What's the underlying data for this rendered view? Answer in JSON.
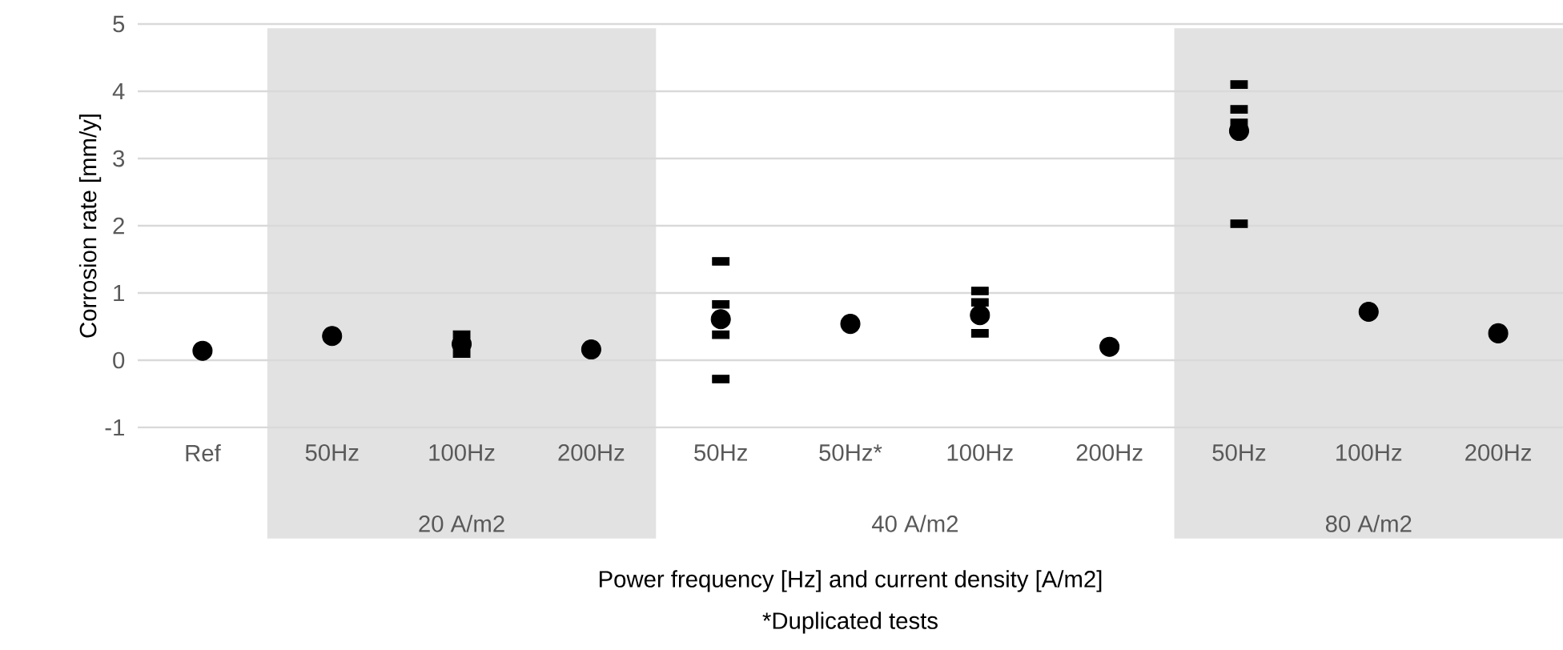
{
  "chart_data": {
    "type": "scatter",
    "xlabel": "Power frequency [Hz] and current density [A/m2]",
    "ylabel": "Corrosion rate [mm/y]",
    "annotations": [
      "20 A/m2",
      "40 A/m2",
      "80 A/m2",
      "*Duplicated tests"
    ],
    "categories": [
      "Ref",
      "50Hz",
      "100Hz",
      "200Hz",
      "50Hz",
      "50Hz*",
      "100Hz",
      "200Hz",
      "50Hz",
      "100Hz",
      "200Hz"
    ],
    "series": [
      {
        "color": "#000000",
        "marker": "circle",
        "values": [
          0.14,
          0.36,
          0.24,
          0.16,
          0.61,
          0.54,
          0.67,
          0.2,
          3.41,
          0.72,
          0.4
        ]
      },
      {
        "color": "#000000",
        "values": [
          null,
          null,
          0.38,
          null,
          1.47,
          null,
          1.03,
          null,
          4.1,
          null,
          null
        ]
      },
      {
        "color": "#000000",
        "values": [
          null,
          null,
          0.1,
          null,
          0.83,
          null,
          0.86,
          null,
          3.73,
          null,
          null
        ]
      },
      {
        "color": "#000000",
        "values": [
          null,
          null,
          null,
          null,
          0.38,
          null,
          0.4,
          null,
          3.53,
          null,
          null
        ]
      },
      {
        "color": "#000000",
        "values": [
          null,
          null,
          null,
          null,
          -0.28,
          null,
          null,
          null,
          2.03,
          null,
          null
        ]
      }
    ],
    "ylim": [
      -1,
      5
    ],
    "yticks": [
      -1,
      0,
      1,
      2,
      3,
      4,
      5
    ],
    "grid": "y"
  }
}
